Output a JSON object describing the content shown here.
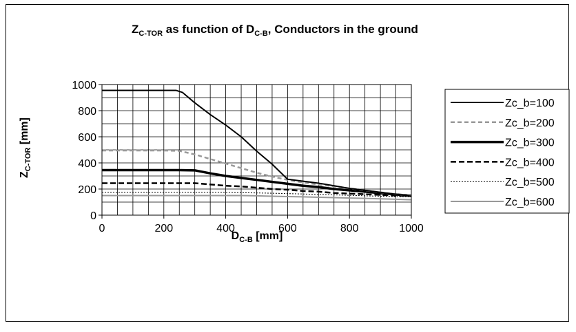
{
  "chart_data": {
    "type": "line",
    "title": {
      "prefix": "Z",
      "prefix_sub": "C-TOR",
      "middle": " as function of D",
      "middle_sub": "C-B",
      "suffix": ", Conductors in the ground"
    },
    "xlabel": {
      "main": "D",
      "sub": "C-B",
      "unit": " [mm]"
    },
    "ylabel": {
      "main": "Z",
      "sub": "C-TOR",
      "unit": " [mm]"
    },
    "xlim": [
      0,
      1000
    ],
    "ylim": [
      0,
      1000
    ],
    "x_ticks": [
      0,
      200,
      400,
      600,
      800,
      1000
    ],
    "x_tick_labels": [
      "0",
      "200",
      "400",
      "600",
      "800",
      "1000"
    ],
    "y_ticks": [
      0,
      200,
      400,
      600,
      800,
      1000
    ],
    "y_tick_labels": [
      "0",
      "200",
      "400",
      "600",
      "800",
      "1000"
    ],
    "x_minor_step": 50,
    "y_minor_step": 100,
    "grid": true,
    "legend_position": "right",
    "series": [
      {
        "name": "Zc_b=100",
        "color": "#000000",
        "dash": "solid",
        "x": [
          0,
          50,
          100,
          150,
          200,
          240,
          260,
          300,
          350,
          400,
          450,
          500,
          550,
          600,
          650,
          700,
          750,
          800,
          850,
          900,
          950,
          1000
        ],
        "y": [
          955,
          955,
          955,
          955,
          955,
          955,
          940,
          860,
          770,
          690,
          600,
          490,
          390,
          275,
          260,
          245,
          225,
          205,
          190,
          175,
          160,
          145
        ]
      },
      {
        "name": "Zc_b=200",
        "color": "#999999",
        "dash": "dash",
        "x": [
          0,
          50,
          100,
          150,
          200,
          250,
          300,
          350,
          400,
          450,
          500,
          550,
          600,
          650,
          700,
          750,
          800,
          850,
          900,
          950,
          1000
        ],
        "y": [
          495,
          495,
          495,
          495,
          495,
          492,
          465,
          430,
          395,
          360,
          325,
          295,
          270,
          250,
          235,
          220,
          205,
          190,
          175,
          160,
          145
        ]
      },
      {
        "name": "Zc_b=300",
        "color": "#000000",
        "dash": "thick",
        "x": [
          0,
          50,
          100,
          150,
          200,
          250,
          300,
          350,
          400,
          450,
          500,
          550,
          600,
          650,
          700,
          750,
          800,
          850,
          900,
          950,
          1000
        ],
        "y": [
          345,
          345,
          345,
          345,
          345,
          345,
          343,
          320,
          300,
          285,
          270,
          255,
          240,
          225,
          215,
          200,
          190,
          180,
          168,
          158,
          148
        ]
      },
      {
        "name": "Zc_b=400",
        "color": "#000000",
        "dash": "bigdash",
        "x": [
          0,
          50,
          100,
          150,
          200,
          250,
          300,
          350,
          400,
          450,
          500,
          550,
          600,
          650,
          700,
          750,
          800,
          850,
          900,
          950,
          1000
        ],
        "y": [
          245,
          245,
          245,
          245,
          245,
          245,
          245,
          235,
          225,
          220,
          210,
          200,
          195,
          185,
          180,
          170,
          165,
          160,
          155,
          150,
          145
        ]
      },
      {
        "name": "Zc_b=500",
        "color": "#000000",
        "dash": "dot",
        "x": [
          0,
          50,
          100,
          150,
          200,
          250,
          300,
          350,
          400,
          450,
          500,
          550,
          600,
          650,
          700,
          750,
          800,
          850,
          900,
          950,
          1000
        ],
        "y": [
          175,
          175,
          175,
          175,
          175,
          175,
          175,
          175,
          175,
          172,
          170,
          168,
          165,
          162,
          158,
          155,
          152,
          148,
          145,
          142,
          140
        ]
      },
      {
        "name": "Zc_b=600",
        "color": "#999999",
        "dash": "solid",
        "x": [
          0,
          50,
          100,
          150,
          200,
          250,
          300,
          350,
          400,
          450,
          500,
          550,
          600,
          650,
          700,
          750,
          800,
          850,
          900,
          950,
          1000
        ],
        "y": [
          150,
          150,
          150,
          150,
          150,
          150,
          150,
          150,
          150,
          150,
          148,
          145,
          142,
          140,
          137,
          134,
          131,
          128,
          125,
          122,
          118
        ]
      }
    ]
  }
}
